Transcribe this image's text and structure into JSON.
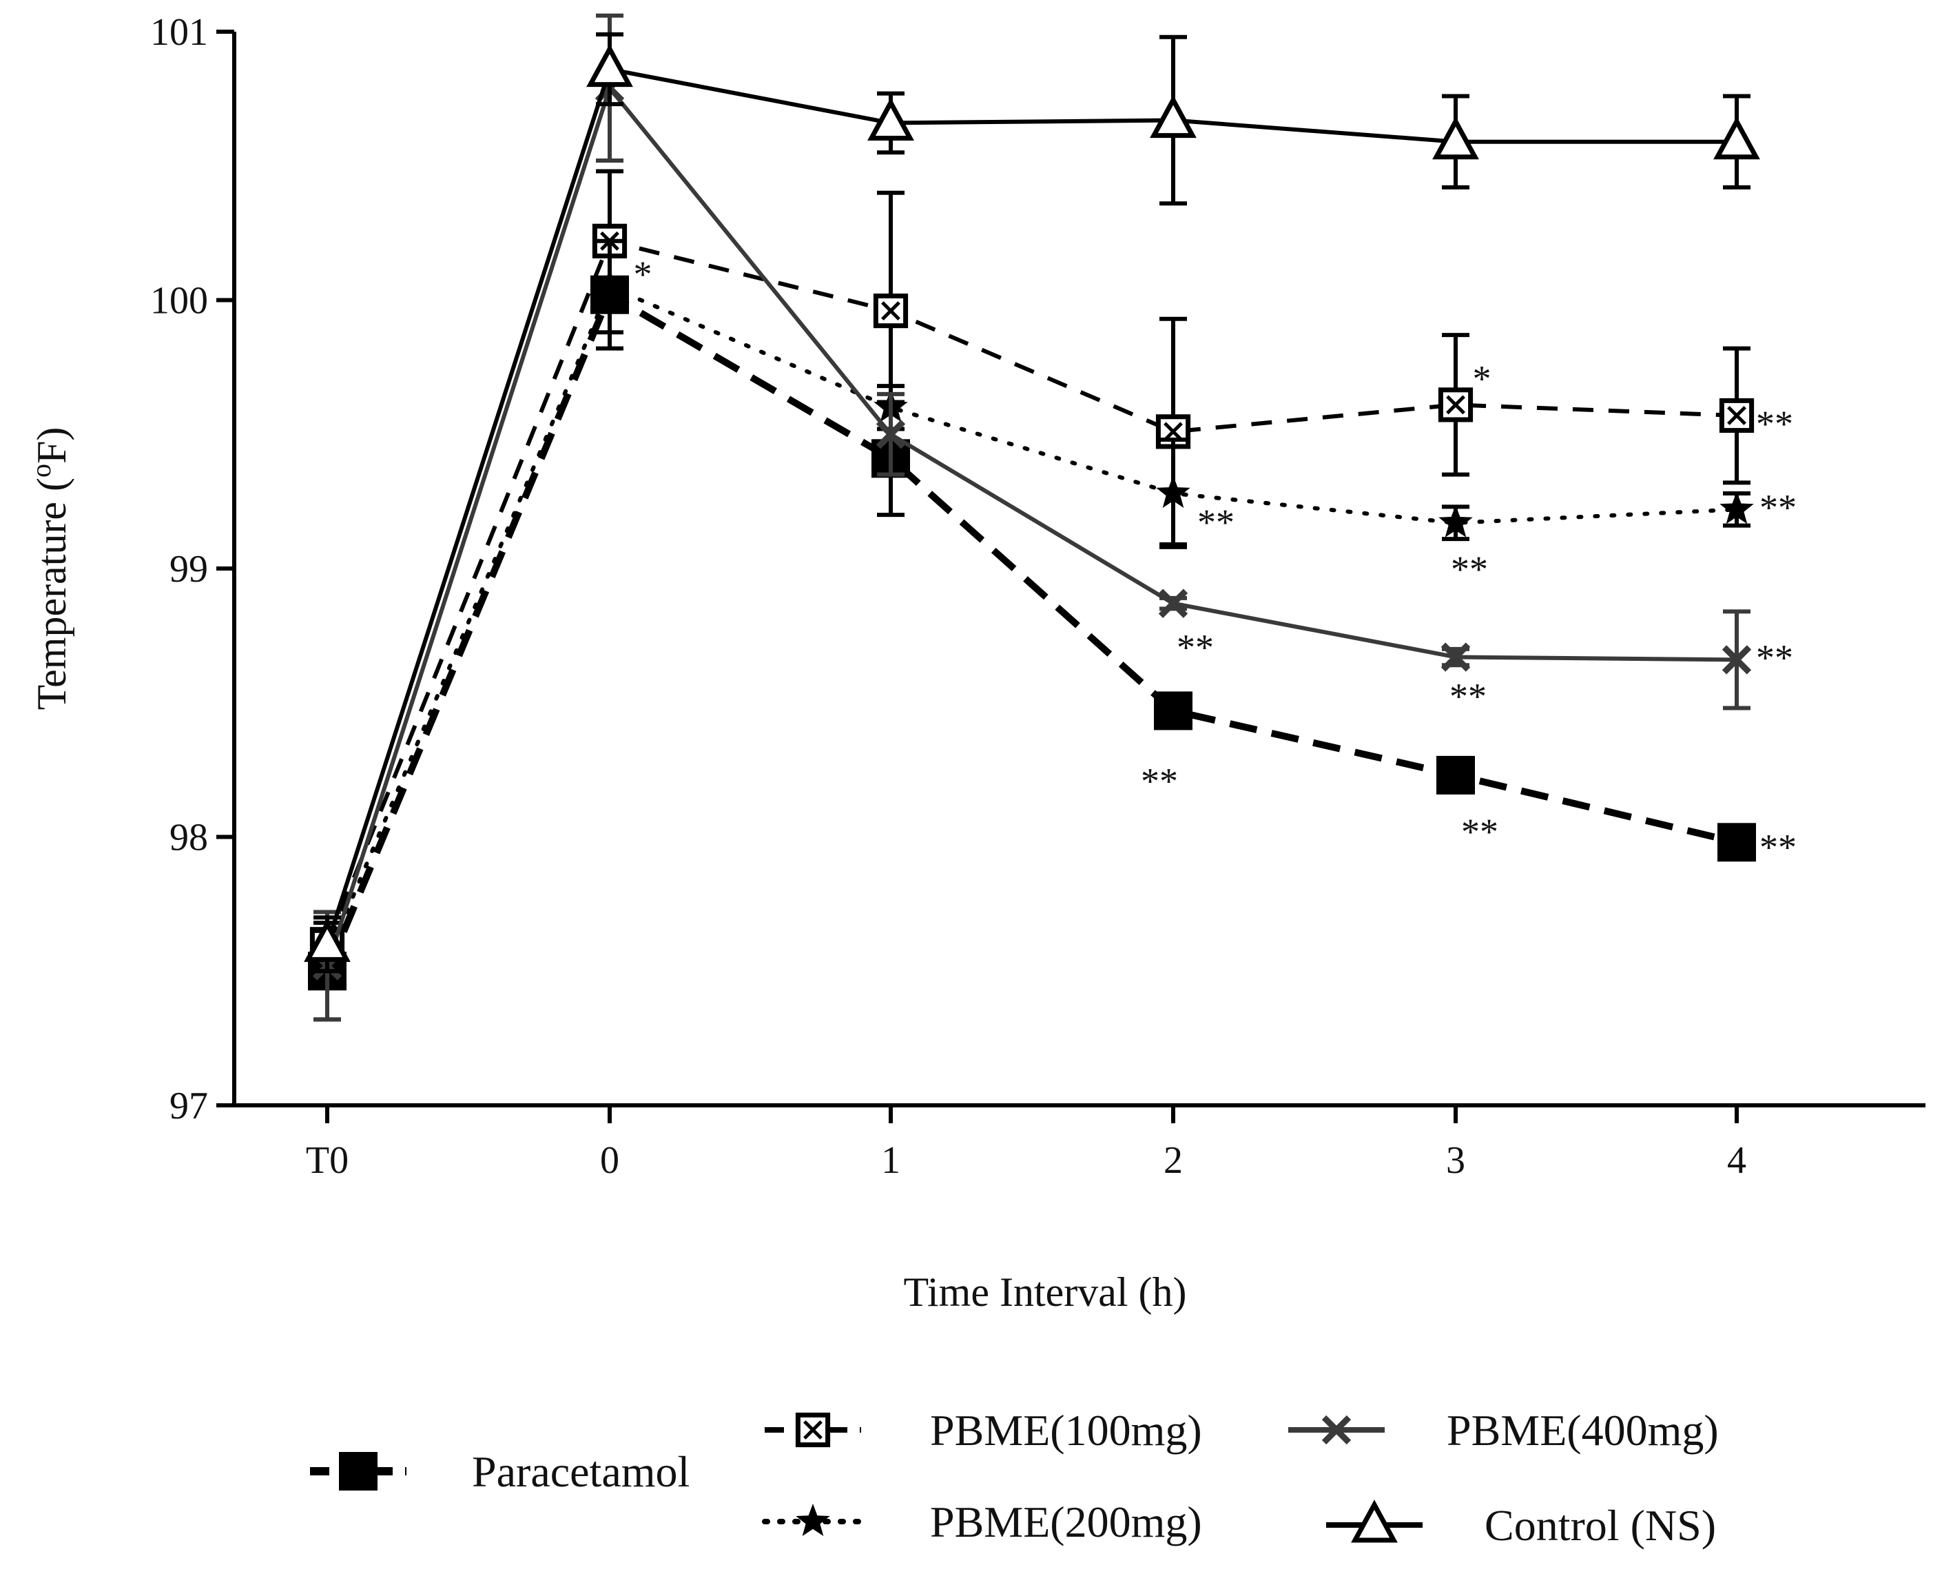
{
  "chart_data": {
    "type": "line",
    "title": "",
    "xlabel": "Time Interval (h)",
    "ylabel_main": "Temperature (",
    "ylabel_sup": "o",
    "ylabel_end": "F)",
    "categories": [
      "T0",
      "0",
      "1",
      "2",
      "3",
      "4"
    ],
    "ylim": [
      97,
      101
    ],
    "yticks": [
      97,
      98,
      99,
      100,
      101
    ],
    "series": [
      {
        "name": "Paracetamol",
        "marker": "square-filled",
        "dash": "long-dash",
        "color": "#000000",
        "values": [
          97.5,
          100.02,
          99.41,
          98.47,
          98.23,
          97.98
        ],
        "errors": [
          0.18,
          0.2,
          0.21,
          0.0,
          0.0,
          0.0
        ],
        "sig": [
          "",
          "",
          "",
          "**",
          "**",
          "**"
        ]
      },
      {
        "name": "PBME(100mg)",
        "marker": "square-x",
        "dash": "dash",
        "color": "#000000",
        "values": [
          97.6,
          100.22,
          99.96,
          99.51,
          99.61,
          99.57
        ],
        "errors": [
          0.12,
          0.26,
          0.44,
          0.42,
          0.26,
          0.25
        ],
        "sig": [
          "",
          "",
          "",
          "",
          "*",
          "**"
        ]
      },
      {
        "name": "PBME(200mg)",
        "marker": "star",
        "dash": "dot",
        "color": "#000000",
        "values": [
          97.55,
          100.05,
          99.6,
          99.28,
          99.17,
          99.22
        ],
        "errors": [
          0.1,
          0.17,
          0.08,
          0.2,
          0.06,
          0.06
        ],
        "sig": [
          "",
          "*",
          "",
          "**",
          "**",
          "**"
        ]
      },
      {
        "name": "PBME(400mg)",
        "marker": "x",
        "dash": "solid",
        "color": "#3a3a3a",
        "values": [
          97.52,
          100.79,
          99.5,
          98.87,
          98.67,
          98.66
        ],
        "errors": [
          0.2,
          0.27,
          0.15,
          0.02,
          0.03,
          0.18
        ],
        "sig": [
          "",
          "",
          "",
          "**",
          "**",
          "**"
        ]
      },
      {
        "name": "Control (NS)",
        "marker": "triangle-open",
        "dash": "solid",
        "color": "#000000",
        "values": [
          97.6,
          100.86,
          100.66,
          100.67,
          100.59,
          100.59
        ],
        "errors": [
          0.1,
          0.13,
          0.11,
          0.31,
          0.17,
          0.17
        ],
        "sig": [
          "",
          "",
          "",
          "",
          "",
          ""
        ]
      }
    ],
    "legend": {
      "position": "bottom",
      "entries": [
        "Paracetamol",
        "PBME(100mg)",
        "PBME(400mg)",
        "PBME(200mg)",
        "Control (NS)"
      ]
    }
  }
}
